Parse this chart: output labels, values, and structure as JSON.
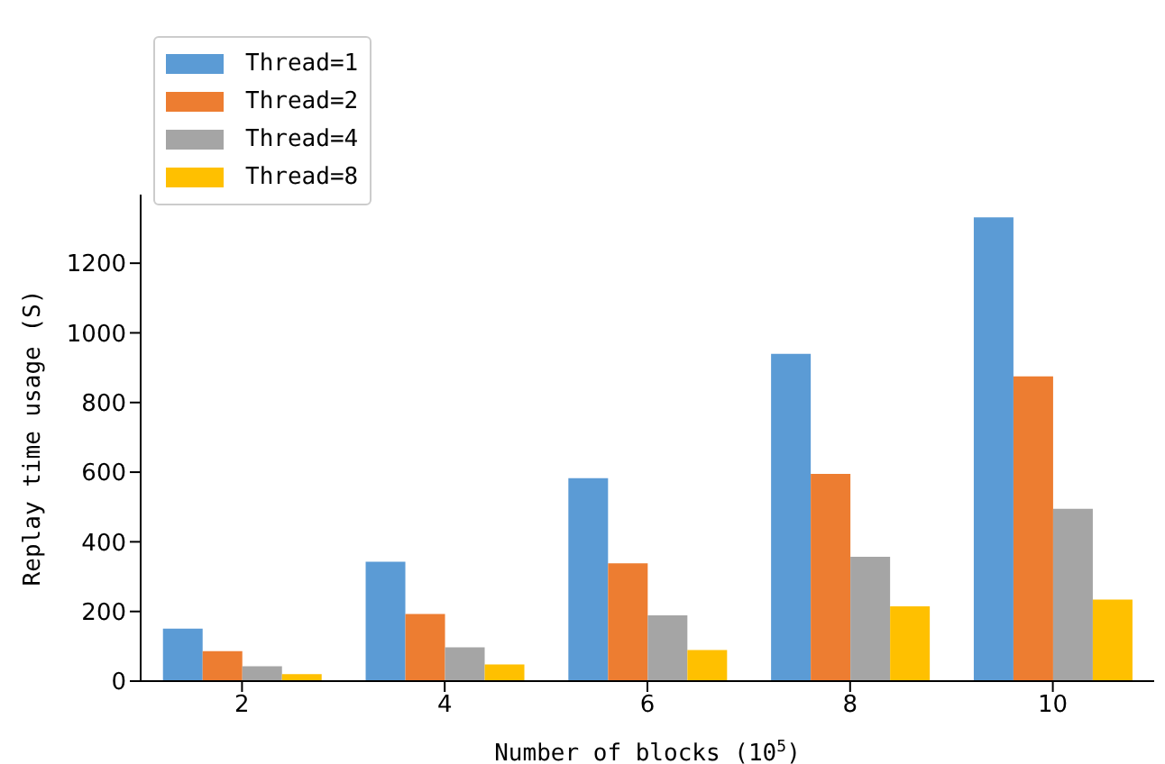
{
  "chart_data": {
    "type": "bar",
    "xlabel": "Number of blocks (10$^{5}$)",
    "ylabel": "Replay time usage (S)",
    "categories": [
      "2",
      "4",
      "6",
      "8",
      "10"
    ],
    "series": [
      {
        "name": "Thread=1",
        "color": "#5b9bd5",
        "values": [
          151,
          343,
          583,
          940,
          1332
        ]
      },
      {
        "name": "Thread=2",
        "color": "#ed7d31",
        "values": [
          86,
          193,
          338,
          595,
          875
        ]
      },
      {
        "name": "Thread=4",
        "color": "#a5a5a5",
        "values": [
          43,
          97,
          189,
          357,
          495
        ]
      },
      {
        "name": "Thread=8",
        "color": "#ffc000",
        "values": [
          20,
          48,
          89,
          215,
          234
        ]
      }
    ],
    "ylim": [
      0,
      1397
    ],
    "yticks": [
      0,
      200,
      400,
      600,
      800,
      1000,
      1200
    ],
    "grid": false,
    "legend": "top left"
  }
}
